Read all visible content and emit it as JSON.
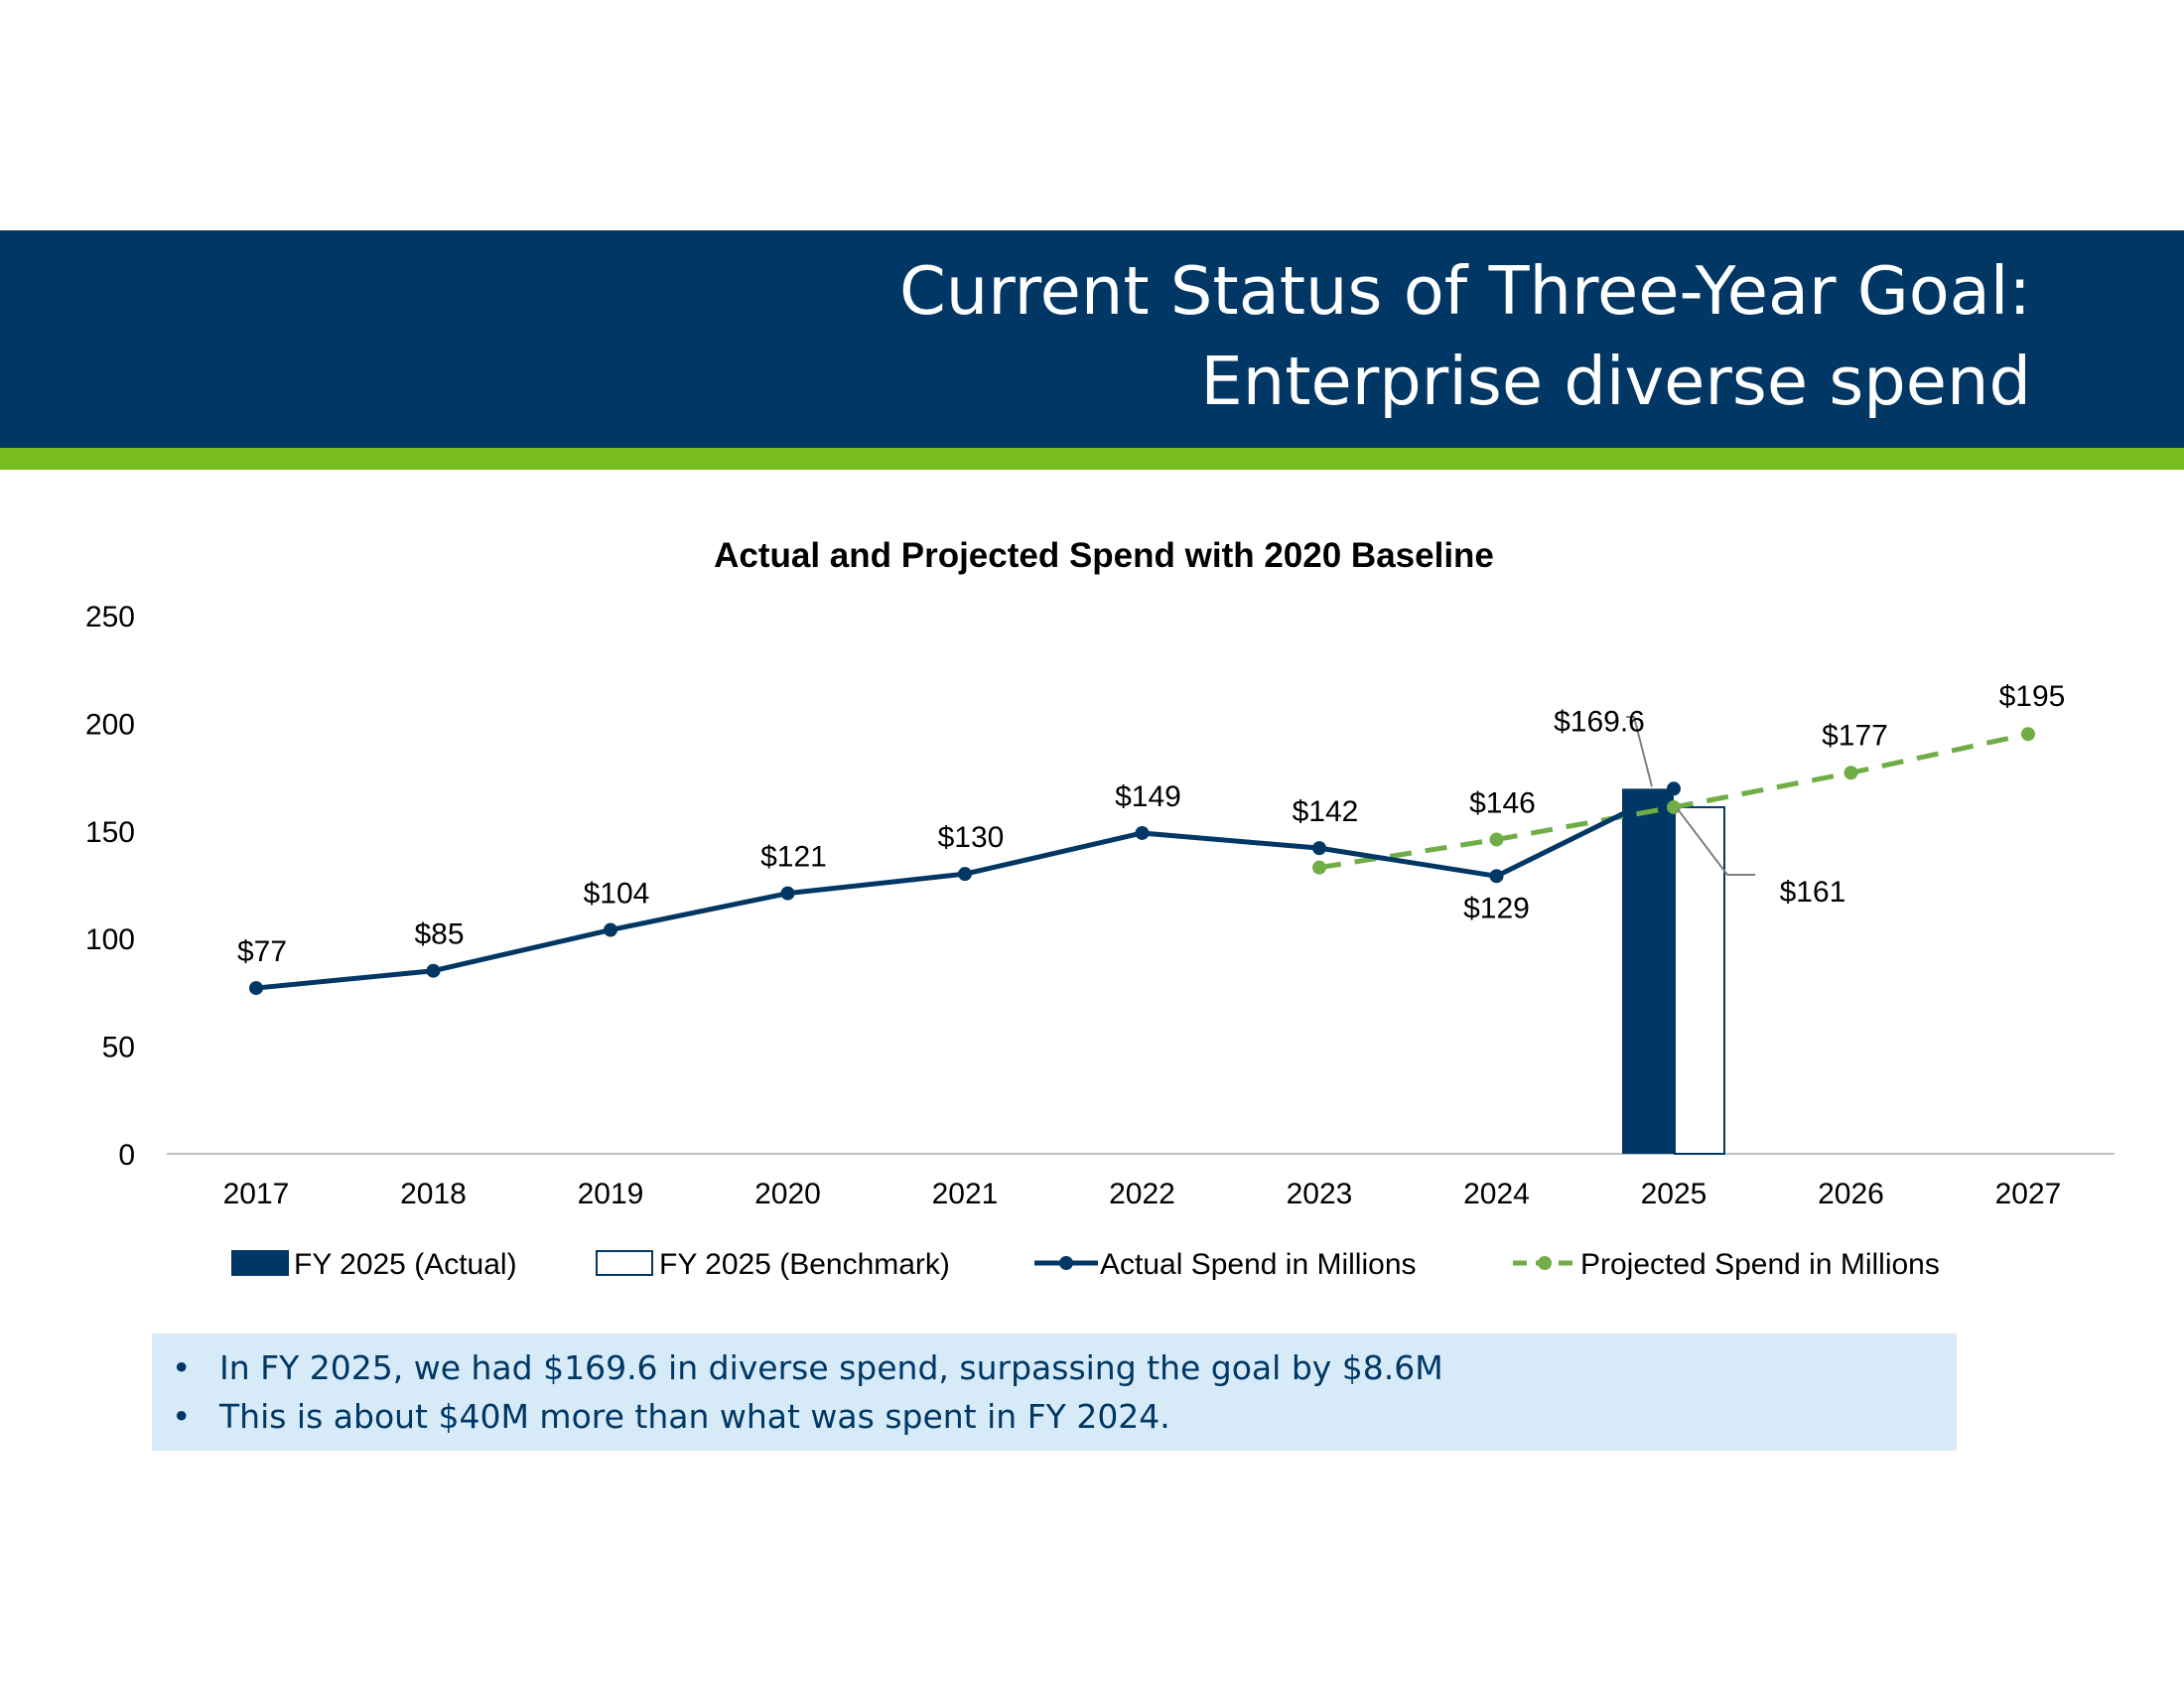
{
  "header": {
    "title_line1": "Current Status of Three-Year Goal:",
    "title_line2": "Enterprise diverse spend"
  },
  "colors": {
    "header_bg": "#003764",
    "accent_green": "#78BE20",
    "actual_navy": "#003764",
    "projected_green": "#70AD47",
    "callout_bg": "#D6EAF8"
  },
  "chart_data": {
    "type": "line",
    "title": "Actual and Projected Spend with 2020 Baseline",
    "xlabel": "",
    "ylabel": "",
    "ylim": [
      0,
      250
    ],
    "yticks": [
      0,
      50,
      100,
      150,
      200,
      250
    ],
    "categories": [
      "2017",
      "2018",
      "2019",
      "2020",
      "2021",
      "2022",
      "2023",
      "2024",
      "2025",
      "2026",
      "2027"
    ],
    "grid": false,
    "legend_position": "bottom",
    "bars": [
      {
        "name": "FY 2025 (Actual)",
        "category": "2025",
        "value": 169.6,
        "style": "filled"
      },
      {
        "name": "FY 2025 (Benchmark)",
        "category": "2025",
        "value": 161,
        "style": "outline"
      }
    ],
    "series": [
      {
        "name": "Actual Spend in Millions",
        "style": "solid",
        "values": [
          77,
          85,
          104,
          121,
          130,
          149,
          142,
          129,
          169.6,
          null,
          null
        ],
        "labels": [
          "$77",
          "$85",
          "$104",
          "$121",
          "$130",
          "$149",
          "$142",
          "$129",
          "$169.6",
          "",
          ""
        ]
      },
      {
        "name": "Projected Spend in Millions",
        "style": "dashed",
        "values": [
          null,
          null,
          null,
          null,
          null,
          null,
          133,
          146,
          161,
          177,
          195
        ],
        "labels": [
          "",
          "",
          "",
          "",
          "",
          "",
          "",
          "$146",
          "$161",
          "$177",
          "$195"
        ]
      }
    ]
  },
  "callout": {
    "bullet": "•",
    "items": [
      "In FY 2025, we had $169.6 in diverse spend, surpassing the goal by $8.6M",
      "This is about $40M more than what was spent in FY 2024."
    ]
  }
}
